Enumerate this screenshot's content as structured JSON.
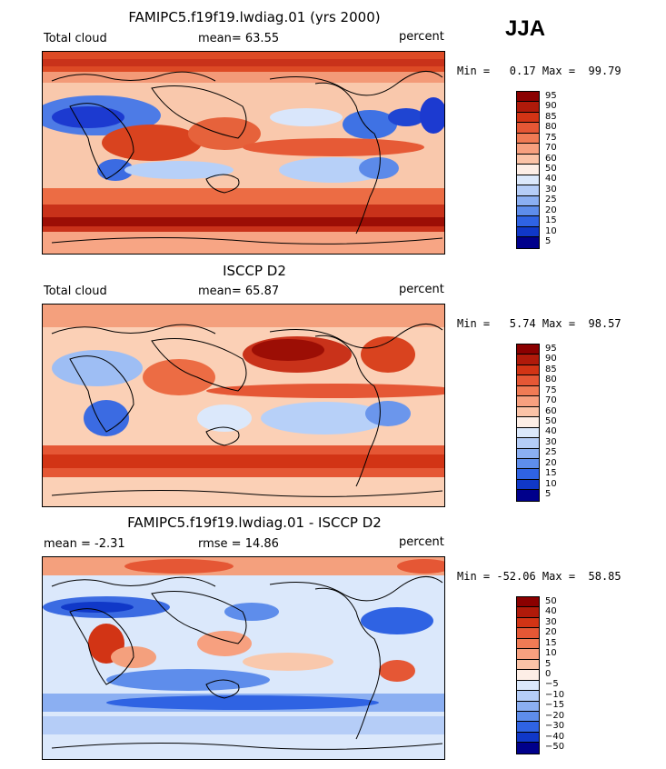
{
  "season": "JJA",
  "panels": [
    {
      "title": "FAMIPC5.f19f19.lwdiag.01 (yrs 2000)",
      "left_label": "Total cloud",
      "center_label": "mean=  63.55",
      "right_label": "percent",
      "minmax": "Min =   0.17 Max =  99.79",
      "colorbar": {
        "labels": [
          "95",
          "90",
          "85",
          "80",
          "75",
          "70",
          "60",
          "50",
          "40",
          "30",
          "25",
          "20",
          "15",
          "10",
          "5"
        ],
        "colors": [
          "#8b0000",
          "#b01a0a",
          "#d23415",
          "#e55735",
          "#f07b55",
          "#f7a07f",
          "#fbc3a7",
          "#fdeee6",
          "#dbe8fb",
          "#b5cdf7",
          "#8baff2",
          "#5e8deb",
          "#2f63e3",
          "#1038c8",
          "#00008b"
        ]
      }
    },
    {
      "title": "ISCCP D2",
      "left_label": "Total cloud",
      "center_label": "mean=  65.87",
      "right_label": "percent",
      "minmax": "Min =   5.74 Max =  98.57",
      "colorbar": {
        "labels": [
          "95",
          "90",
          "85",
          "80",
          "75",
          "70",
          "60",
          "50",
          "40",
          "30",
          "25",
          "20",
          "15",
          "10",
          "5"
        ],
        "colors": [
          "#8b0000",
          "#b01a0a",
          "#d23415",
          "#e55735",
          "#f07b55",
          "#f7a07f",
          "#fbc3a7",
          "#fdeee6",
          "#dbe8fb",
          "#b5cdf7",
          "#8baff2",
          "#5e8deb",
          "#2f63e3",
          "#1038c8",
          "#00008b"
        ]
      }
    },
    {
      "title": "FAMIPC5.f19f19.lwdiag.01 - ISCCP D2",
      "left_label": "mean =   -2.31",
      "center_label": "rmse =   14.86",
      "right_label": "percent",
      "minmax": "Min = -52.06 Max =  58.85",
      "colorbar": {
        "labels": [
          "50",
          "40",
          "30",
          "20",
          "15",
          "10",
          "5",
          "0",
          "−5",
          "−10",
          "−15",
          "−20",
          "−30",
          "−40",
          "−50"
        ],
        "colors": [
          "#8b0000",
          "#b01a0a",
          "#d23415",
          "#e55735",
          "#f07b55",
          "#f7a07f",
          "#fbc3a7",
          "#fdeee6",
          "#dbe8fb",
          "#b5cdf7",
          "#8baff2",
          "#5e8deb",
          "#2f63e3",
          "#1038c8",
          "#00008b"
        ]
      }
    }
  ]
}
